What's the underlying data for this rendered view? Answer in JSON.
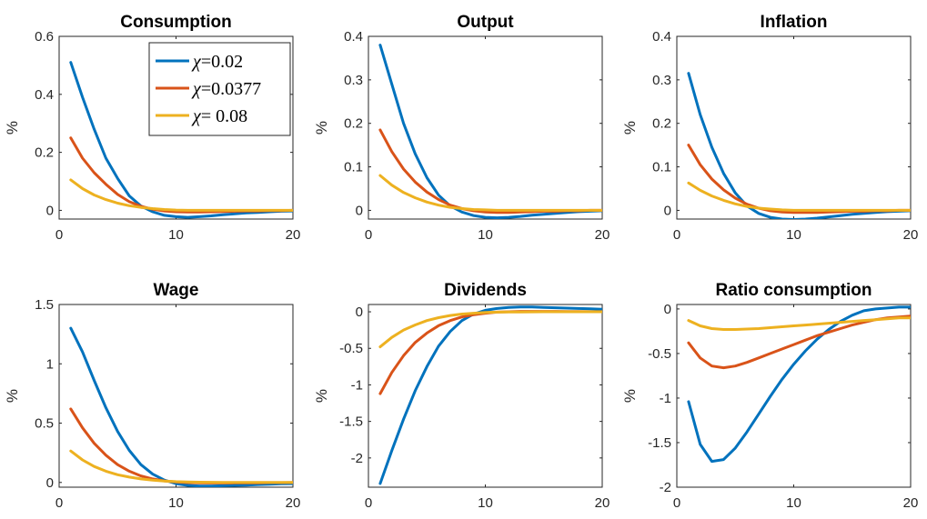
{
  "colors": {
    "series_1": "#0072BD",
    "series_2": "#D95319",
    "series_3": "#EDB120"
  },
  "legend": {
    "placement": "top-right of Consumption panel",
    "entries": [
      {
        "symbol": "χ",
        "value": "=0.02"
      },
      {
        "symbol": "χ",
        "value": "=0.0377"
      },
      {
        "symbol": "χ",
        "value": "= 0.08"
      }
    ]
  },
  "chart_data": [
    {
      "type": "line",
      "title": "Consumption",
      "ylabel": "%",
      "xlim": [
        0,
        20
      ],
      "ylim": [
        -0.03,
        0.6
      ],
      "xticks": [
        0,
        10,
        20
      ],
      "xtick_labels": [
        "0",
        "10",
        "20"
      ],
      "yticks": [
        0,
        0.2,
        0.4,
        0.6
      ],
      "ytick_labels": [
        "0",
        "0.2",
        "0.4",
        "0.6"
      ],
      "x": [
        1,
        2,
        3,
        4,
        5,
        6,
        7,
        8,
        9,
        10,
        11,
        12,
        13,
        14,
        15,
        16,
        17,
        18,
        19,
        20
      ],
      "series": [
        {
          "name": "χ=0.02",
          "values": [
            0.51,
            0.39,
            0.28,
            0.18,
            0.11,
            0.05,
            0.015,
            -0.005,
            -0.017,
            -0.022,
            -0.024,
            -0.022,
            -0.019,
            -0.015,
            -0.012,
            -0.009,
            -0.007,
            -0.005,
            -0.003,
            -0.002
          ]
        },
        {
          "name": "χ=0.0377",
          "values": [
            0.25,
            0.18,
            0.13,
            0.09,
            0.055,
            0.03,
            0.014,
            0.004,
            -0.002,
            -0.005,
            -0.006,
            -0.006,
            -0.005,
            -0.004,
            -0.003,
            -0.002,
            -0.002,
            -0.001,
            -0.001,
            0.0
          ]
        },
        {
          "name": "χ= 0.08",
          "values": [
            0.105,
            0.075,
            0.053,
            0.037,
            0.025,
            0.016,
            0.01,
            0.006,
            0.003,
            0.001,
            0.0,
            0.0,
            0.0,
            0.0,
            0.0,
            0.0,
            0.0,
            0.0,
            0.0,
            0.0
          ]
        }
      ]
    },
    {
      "type": "line",
      "title": "Output",
      "ylabel": "%",
      "xlim": [
        0,
        20
      ],
      "ylim": [
        -0.02,
        0.4
      ],
      "xticks": [
        0,
        10,
        20
      ],
      "xtick_labels": [
        "0",
        "10",
        "20"
      ],
      "yticks": [
        0,
        0.1,
        0.2,
        0.3,
        0.4
      ],
      "ytick_labels": [
        "0",
        "0.1",
        "0.2",
        "0.3",
        "0.4"
      ],
      "x": [
        1,
        2,
        3,
        4,
        5,
        6,
        7,
        8,
        9,
        10,
        11,
        12,
        13,
        14,
        15,
        16,
        17,
        18,
        19,
        20
      ],
      "series": [
        {
          "name": "χ=0.02",
          "values": [
            0.38,
            0.29,
            0.2,
            0.13,
            0.075,
            0.035,
            0.01,
            -0.004,
            -0.012,
            -0.016,
            -0.017,
            -0.016,
            -0.014,
            -0.011,
            -0.009,
            -0.007,
            -0.005,
            -0.003,
            -0.002,
            -0.001
          ]
        },
        {
          "name": "χ=0.0377",
          "values": [
            0.185,
            0.135,
            0.095,
            0.065,
            0.042,
            0.025,
            0.012,
            0.004,
            -0.001,
            -0.004,
            -0.005,
            -0.005,
            -0.004,
            -0.003,
            -0.002,
            -0.002,
            -0.001,
            -0.001,
            0.0,
            0.0
          ]
        },
        {
          "name": "χ= 0.08",
          "values": [
            0.08,
            0.058,
            0.041,
            0.029,
            0.019,
            0.012,
            0.007,
            0.004,
            0.002,
            0.001,
            0.0,
            0.0,
            0.0,
            0.0,
            0.0,
            0.0,
            0.0,
            0.0,
            0.0,
            0.0
          ]
        }
      ]
    },
    {
      "type": "line",
      "title": "Inflation",
      "ylabel": "%",
      "xlim": [
        0,
        20
      ],
      "ylim": [
        -0.02,
        0.4
      ],
      "xticks": [
        0,
        10,
        20
      ],
      "xtick_labels": [
        "0",
        "10",
        "20"
      ],
      "yticks": [
        0,
        0.1,
        0.2,
        0.3,
        0.4
      ],
      "ytick_labels": [
        "0",
        "0.1",
        "0.2",
        "0.3",
        "0.4"
      ],
      "x": [
        1,
        2,
        3,
        4,
        5,
        6,
        7,
        8,
        9,
        10,
        11,
        12,
        13,
        14,
        15,
        16,
        17,
        18,
        19,
        20
      ],
      "series": [
        {
          "name": "χ=0.02",
          "values": [
            0.315,
            0.22,
            0.145,
            0.085,
            0.04,
            0.01,
            -0.007,
            -0.016,
            -0.02,
            -0.021,
            -0.02,
            -0.018,
            -0.015,
            -0.012,
            -0.009,
            -0.007,
            -0.005,
            -0.003,
            -0.002,
            -0.001
          ]
        },
        {
          "name": "χ=0.0377",
          "values": [
            0.15,
            0.105,
            0.072,
            0.047,
            0.028,
            0.014,
            0.005,
            -0.001,
            -0.004,
            -0.005,
            -0.005,
            -0.005,
            -0.004,
            -0.003,
            -0.002,
            -0.002,
            -0.001,
            -0.001,
            0.0,
            0.0
          ]
        },
        {
          "name": "χ= 0.08",
          "values": [
            0.063,
            0.046,
            0.033,
            0.023,
            0.015,
            0.009,
            0.005,
            0.003,
            0.001,
            0.0,
            0.0,
            0.0,
            0.0,
            0.0,
            0.0,
            0.0,
            0.0,
            0.0,
            0.0,
            0.0
          ]
        }
      ]
    },
    {
      "type": "line",
      "title": "Wage",
      "ylabel": "%",
      "xlim": [
        0,
        20
      ],
      "ylim": [
        -0.04,
        1.5
      ],
      "xticks": [
        0,
        10,
        20
      ],
      "xtick_labels": [
        "0",
        "10",
        "20"
      ],
      "yticks": [
        0,
        0.5,
        1,
        1.5
      ],
      "ytick_labels": [
        "0",
        "0.5",
        "1",
        "1.5"
      ],
      "x": [
        1,
        2,
        3,
        4,
        5,
        6,
        7,
        8,
        9,
        10,
        11,
        12,
        13,
        14,
        15,
        16,
        17,
        18,
        19,
        20
      ],
      "series": [
        {
          "name": "χ=0.02",
          "values": [
            1.3,
            1.1,
            0.86,
            0.63,
            0.43,
            0.27,
            0.15,
            0.07,
            0.02,
            -0.01,
            -0.025,
            -0.03,
            -0.03,
            -0.028,
            -0.025,
            -0.022,
            -0.018,
            -0.015,
            -0.012,
            -0.01
          ]
        },
        {
          "name": "χ=0.0377",
          "values": [
            0.62,
            0.46,
            0.33,
            0.23,
            0.15,
            0.095,
            0.055,
            0.03,
            0.013,
            0.004,
            -0.002,
            -0.004,
            -0.005,
            -0.005,
            -0.004,
            -0.003,
            -0.003,
            -0.002,
            -0.002,
            -0.001
          ]
        },
        {
          "name": "χ= 0.08",
          "values": [
            0.265,
            0.19,
            0.135,
            0.095,
            0.065,
            0.045,
            0.03,
            0.02,
            0.012,
            0.007,
            0.004,
            0.002,
            0.001,
            0.0,
            0.0,
            0.0,
            0.0,
            0.0,
            0.0,
            0.0
          ]
        }
      ]
    },
    {
      "type": "line",
      "title": "Dividends",
      "ylabel": "%",
      "xlim": [
        0,
        20
      ],
      "ylim": [
        -2.4,
        0.1
      ],
      "xticks": [
        0,
        10,
        20
      ],
      "xtick_labels": [
        "0",
        "10",
        "20"
      ],
      "yticks": [
        -2,
        -1.5,
        -1,
        -0.5,
        0
      ],
      "ytick_labels": [
        "-2",
        "-1.5",
        "-1",
        "-0.5",
        "0"
      ],
      "x": [
        1,
        2,
        3,
        4,
        5,
        6,
        7,
        8,
        9,
        10,
        11,
        12,
        13,
        14,
        15,
        16,
        17,
        18,
        19,
        20
      ],
      "series": [
        {
          "name": "χ=0.02",
          "values": [
            -2.35,
            -1.9,
            -1.47,
            -1.08,
            -0.75,
            -0.47,
            -0.27,
            -0.12,
            -0.03,
            0.02,
            0.045,
            0.06,
            0.065,
            0.065,
            0.06,
            0.055,
            0.05,
            0.045,
            0.04,
            0.035
          ]
        },
        {
          "name": "χ=0.0377",
          "values": [
            -1.12,
            -0.83,
            -0.6,
            -0.42,
            -0.29,
            -0.19,
            -0.12,
            -0.07,
            -0.04,
            -0.02,
            -0.005,
            0.0,
            0.005,
            0.005,
            0.005,
            0.005,
            0.004,
            0.003,
            0.002,
            0.002
          ]
        },
        {
          "name": "χ= 0.08",
          "values": [
            -0.48,
            -0.35,
            -0.25,
            -0.18,
            -0.12,
            -0.08,
            -0.05,
            -0.03,
            -0.02,
            -0.01,
            -0.005,
            -0.003,
            -0.002,
            -0.001,
            0.0,
            0.0,
            0.0,
            0.0,
            0.0,
            0.0
          ]
        }
      ]
    },
    {
      "type": "line",
      "title": "Ratio consumption",
      "ylabel": "%",
      "xlim": [
        0,
        20
      ],
      "ylim": [
        -2,
        0.05
      ],
      "xticks": [
        0,
        10,
        20
      ],
      "xtick_labels": [
        "0",
        "10",
        "20"
      ],
      "yticks": [
        -2,
        -1.5,
        -1,
        -0.5,
        0
      ],
      "ytick_labels": [
        "-2",
        "-1.5",
        "-1",
        "-0.5",
        "0"
      ],
      "x": [
        1,
        2,
        3,
        4,
        5,
        6,
        7,
        8,
        9,
        10,
        11,
        12,
        13,
        14,
        15,
        16,
        17,
        18,
        19,
        20
      ],
      "series": [
        {
          "name": "χ=0.02",
          "values": [
            -1.04,
            -1.52,
            -1.71,
            -1.69,
            -1.56,
            -1.38,
            -1.18,
            -0.98,
            -0.79,
            -0.62,
            -0.47,
            -0.34,
            -0.23,
            -0.14,
            -0.07,
            -0.02,
            0.0,
            0.01,
            0.02,
            0.02
          ]
        },
        {
          "name": "χ=0.0377",
          "values": [
            -0.38,
            -0.55,
            -0.64,
            -0.66,
            -0.64,
            -0.6,
            -0.55,
            -0.5,
            -0.45,
            -0.4,
            -0.35,
            -0.3,
            -0.26,
            -0.22,
            -0.18,
            -0.15,
            -0.12,
            -0.1,
            -0.09,
            -0.08
          ]
        },
        {
          "name": "χ= 0.08",
          "values": [
            -0.13,
            -0.19,
            -0.22,
            -0.23,
            -0.23,
            -0.225,
            -0.22,
            -0.21,
            -0.2,
            -0.19,
            -0.18,
            -0.17,
            -0.16,
            -0.15,
            -0.14,
            -0.13,
            -0.12,
            -0.11,
            -0.1,
            -0.1
          ]
        }
      ]
    }
  ]
}
